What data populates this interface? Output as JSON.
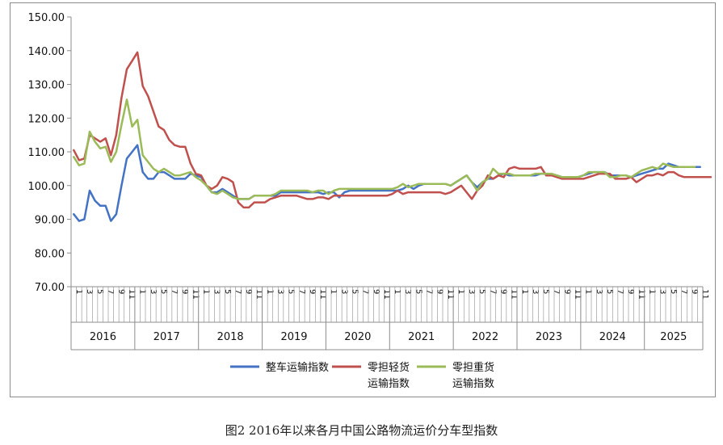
{
  "chart_data": {
    "type": "line",
    "title": "",
    "xlabel": "",
    "ylabel": "",
    "ylim": [
      70,
      150
    ],
    "yticks": [
      "70.00",
      "80.00",
      "90.00",
      "100.00",
      "110.00",
      "120.00",
      "130.00",
      "140.00",
      "150.00"
    ],
    "grid": false,
    "legend_position": "bottom",
    "years": [
      "2016",
      "2017",
      "2018",
      "2019",
      "2020",
      "2021",
      "2022",
      "2023",
      "2024",
      "2025"
    ],
    "x_start": "2016-01",
    "x_end": "2025-07",
    "series": [
      {
        "name": "整车运输指数",
        "legend_lines": [
          "整车运输指数"
        ],
        "color": "#4472c4",
        "values": [
          91.5,
          89.5,
          90,
          98.5,
          95.5,
          94,
          94,
          89.5,
          91.5,
          100,
          108,
          110,
          112,
          104,
          102,
          102,
          104,
          104,
          103,
          102,
          102,
          102,
          103.5,
          103,
          102.5,
          100,
          98,
          98,
          99,
          98,
          97,
          96,
          96,
          96,
          97,
          97,
          97,
          97,
          97,
          98,
          98,
          98,
          98,
          98,
          98,
          98,
          98,
          97.5,
          98,
          98,
          96.5,
          98,
          98.5,
          98.5,
          98.5,
          98.5,
          98.5,
          98.5,
          98.5,
          98.5,
          98.5,
          98.5,
          99,
          100,
          99,
          100,
          100.5,
          100.5,
          100.5,
          100.5,
          100.5,
          100,
          101,
          102,
          103,
          101,
          99.5,
          101,
          102,
          102,
          103,
          103.5,
          103,
          103,
          103,
          103,
          103,
          103,
          103.5,
          103.5,
          103,
          103,
          102.5,
          102.5,
          102.5,
          102.5,
          103,
          103.5,
          104,
          104,
          104,
          103,
          103,
          103,
          103,
          102.5,
          103,
          103.5,
          104,
          104.5,
          105,
          105,
          106.5,
          106,
          105.5,
          105.5,
          105.5,
          105.5,
          105.5
        ]
      },
      {
        "name": "零担轻货运输指数",
        "legend_lines": [
          "零担轻货",
          "运输指数"
        ],
        "color": "#c0504d",
        "values": [
          110.5,
          107.5,
          108,
          115,
          114,
          113,
          114,
          109,
          115,
          126,
          134.5,
          137,
          139.5,
          129.5,
          126.5,
          122,
          117.5,
          116.5,
          113.5,
          112,
          111.5,
          111.5,
          106.5,
          103.5,
          103,
          100,
          99,
          100,
          102.5,
          102,
          101,
          95,
          93.5,
          93.5,
          95,
          95,
          95,
          96,
          96.5,
          97,
          97,
          97,
          97,
          96.5,
          96,
          96,
          96.5,
          96.5,
          96,
          97,
          97,
          97,
          97,
          97,
          97,
          97,
          97,
          97,
          97,
          97,
          97.5,
          98.5,
          97.5,
          98,
          98,
          98,
          98,
          98,
          98,
          98,
          97.5,
          98,
          99,
          100,
          98,
          96,
          98.5,
          100,
          103,
          102,
          103,
          102.5,
          105,
          105.5,
          105,
          105,
          105,
          105,
          105.5,
          103,
          103,
          102.5,
          102,
          102,
          102,
          102,
          102,
          102.5,
          103,
          103.5,
          103.5,
          103.5,
          102,
          102,
          102,
          102.5,
          101,
          102,
          103,
          103,
          103.5,
          103,
          104,
          104,
          103,
          102.5,
          102.5,
          102.5,
          102.5,
          102.5,
          102.5
        ]
      },
      {
        "name": "零担重货运输指数",
        "legend_lines": [
          "零担重货",
          "运输指数"
        ],
        "color": "#9bbb59",
        "values": [
          108.5,
          106,
          106.5,
          116,
          113,
          111,
          111.5,
          107,
          110,
          118,
          125.5,
          117.5,
          119.5,
          109,
          107,
          105,
          104,
          105,
          104,
          103,
          103,
          103.5,
          104,
          102.5,
          101.5,
          100,
          98,
          97.5,
          98.5,
          97.5,
          96.5,
          96,
          96,
          96,
          97,
          97,
          97,
          97,
          97.5,
          98.5,
          98.5,
          98.5,
          98.5,
          98.5,
          98.5,
          98,
          98.5,
          98.5,
          97.5,
          98.5,
          99,
          99,
          99,
          99,
          99,
          99,
          99,
          99,
          99,
          99,
          99,
          99.5,
          100.5,
          99.5,
          100,
          100.5,
          100.5,
          100.5,
          100.5,
          100.5,
          100.5,
          100,
          101,
          102,
          103,
          101,
          98.5,
          101,
          102,
          105,
          103.5,
          103.5,
          103.5,
          103,
          103,
          103,
          103,
          103.5,
          103.5,
          103.5,
          103.5,
          103,
          102.5,
          102.5,
          102.5,
          102.5,
          103,
          104,
          104,
          104,
          104,
          102.5,
          102.5,
          103,
          103,
          102.5,
          103.5,
          104.5,
          105,
          105.5,
          105,
          106.5,
          106,
          105.5,
          105.5,
          105.5,
          105.5,
          105.5
        ]
      }
    ]
  },
  "caption": "图2 2016年以来各月中国公路物流运价分车型指数"
}
